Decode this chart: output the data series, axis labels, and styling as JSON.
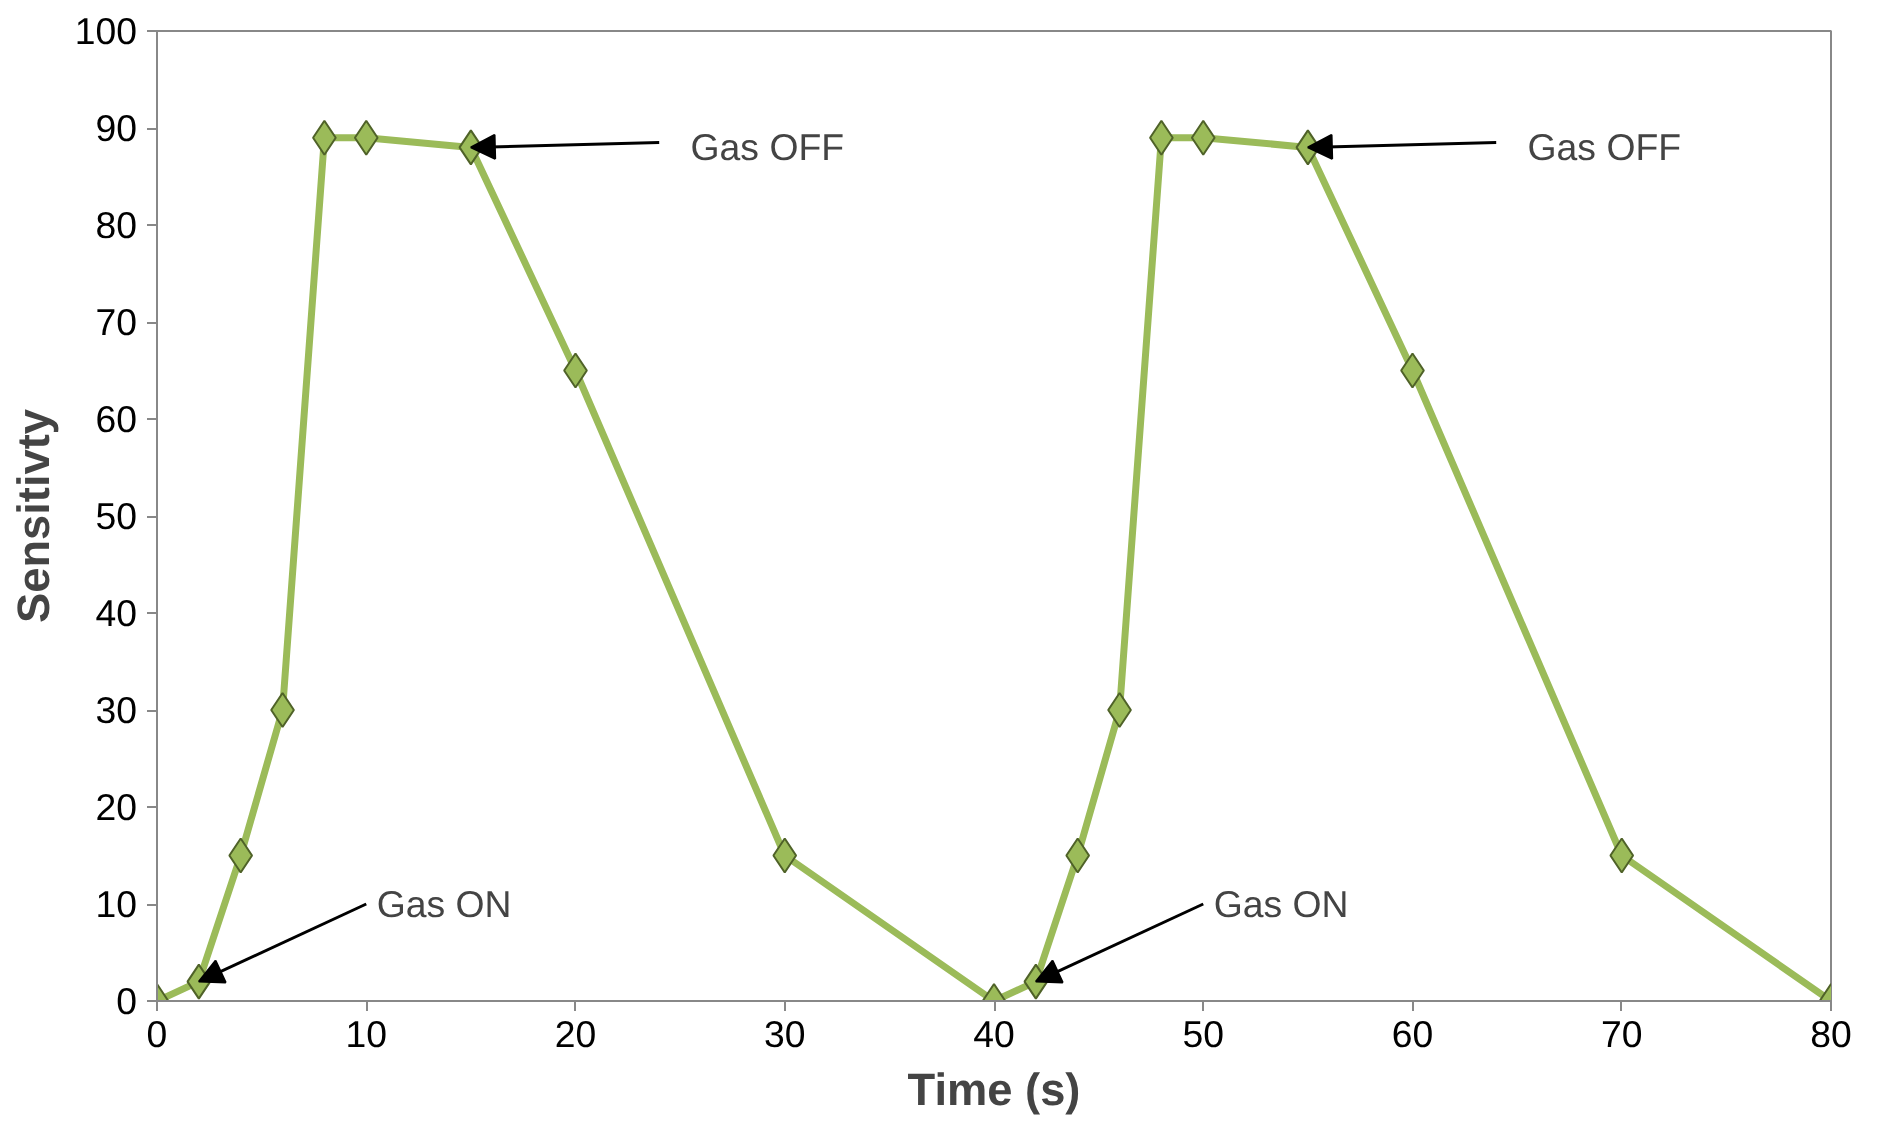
{
  "chart_data": {
    "type": "line",
    "xlabel": "Time (s)",
    "ylabel": "Sensitivty",
    "x": [
      0,
      2,
      4,
      6,
      8,
      10,
      15,
      20,
      30,
      40,
      42,
      44,
      46,
      48,
      50,
      55,
      60,
      70,
      80
    ],
    "series": [
      {
        "color": "#9bbb59",
        "values": [
          0,
          2,
          15,
          30,
          89,
          89,
          88,
          65,
          15,
          0,
          2,
          15,
          30,
          89,
          89,
          88,
          65,
          15,
          0
        ]
      }
    ],
    "xlim": [
      0,
      80
    ],
    "xticks": [
      0,
      10,
      20,
      30,
      40,
      50,
      60,
      70,
      80
    ],
    "ylim": [
      0,
      100
    ],
    "yticks": [
      0,
      10,
      20,
      30,
      40,
      50,
      60,
      70,
      80,
      90,
      100
    ],
    "grid": false,
    "marker": "diamond",
    "line_style": "solid",
    "annotations": [
      {
        "text": "Gas OFF",
        "x": 15,
        "y": 88
      },
      {
        "text": "Gas OFF",
        "x": 55,
        "y": 88
      },
      {
        "text": "Gas ON",
        "x": 2,
        "y": 2
      },
      {
        "text": "Gas ON",
        "x": 42,
        "y": 2
      }
    ]
  }
}
